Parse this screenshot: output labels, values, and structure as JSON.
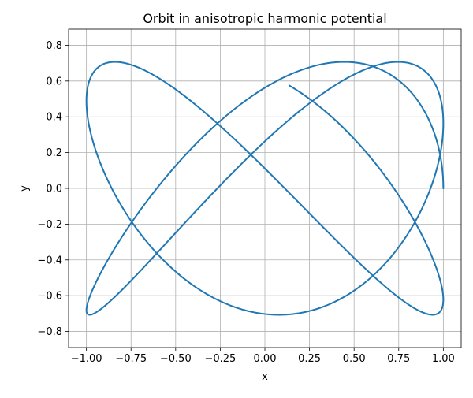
{
  "chart_data": {
    "type": "line",
    "title": "Orbit in anisotropic harmonic potential",
    "xlabel": "x",
    "ylabel": "y",
    "xlim": [
      -1.1,
      1.1
    ],
    "ylim": [
      -0.89,
      0.89
    ],
    "grid": true,
    "x_ticks": [
      "−1.00",
      "−0.75",
      "−0.50",
      "−0.25",
      "0.00",
      "0.25",
      "0.50",
      "0.75",
      "1.00"
    ],
    "y_ticks": [
      "−0.8",
      "−0.6",
      "−0.4",
      "−0.2",
      "0.0",
      "0.2",
      "0.4",
      "0.6",
      "0.8"
    ],
    "series": [
      {
        "color": "#1f77b4",
        "parametric": {
          "x": "cos(t)",
          "y": "(1/sqrt(2)) * sin(sqrt(2) * t)",
          "t_range": [
            0,
            14
          ],
          "samples": 400
        }
      }
    ]
  }
}
